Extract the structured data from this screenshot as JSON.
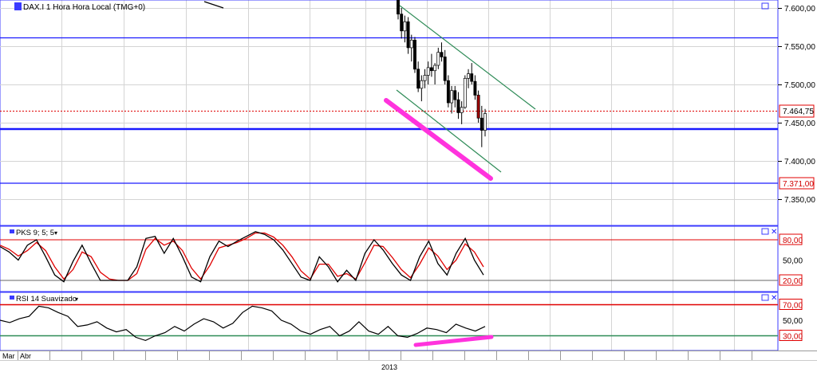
{
  "main_panel": {
    "title": "DAX.I 1 Hora Hora Local (TMG+0)",
    "y_axis": {
      "min": 7300,
      "max": 7620,
      "ticks": [
        "7.600,00",
        "7.550,00",
        "7.500,00",
        "7.450,00",
        "7.400,00",
        "7.350,00"
      ]
    },
    "price_label": "7.464,75",
    "level_label": "7.371,00",
    "colors": {
      "hline": "#1a1aff",
      "price_line": "#e00000",
      "channel": "#2e8b57",
      "annotation": "#ff33dd",
      "up": "#ffffff",
      "down": "#000000"
    }
  },
  "pks_panel": {
    "title": "PKS 9; 5; 5",
    "ticks": [
      "80,00",
      "50,00",
      "20,00"
    ]
  },
  "rsi_panel": {
    "title": "RSI 14 Suavizado",
    "ticks": [
      "70,00",
      "50,00",
      "30,00"
    ]
  },
  "x_axis": {
    "month_labels": [
      "Mar",
      "Abr"
    ],
    "year_label": "2013"
  },
  "chart_data": [
    {
      "type": "candlestick",
      "title": "DAX.I 1 Hora Hora Local (TMG+0)",
      "ylim": [
        7300,
        7620
      ],
      "y_ticks": [
        7600,
        7550,
        7500,
        7450,
        7400,
        7350
      ],
      "horizontal_levels": [
        7560,
        7442,
        7371
      ],
      "current_price": 7464.75,
      "channel_upper": [
        [
          7603,
          7472
        ]
      ],
      "channel_lower": [
        [
          7490,
          7388
        ]
      ],
      "candles": [
        {
          "o": 7610,
          "h": 7625,
          "l": 7585,
          "c": 7592
        },
        {
          "o": 7592,
          "h": 7600,
          "l": 7560,
          "c": 7570
        },
        {
          "o": 7570,
          "h": 7590,
          "l": 7555,
          "c": 7582
        },
        {
          "o": 7582,
          "h": 7588,
          "l": 7540,
          "c": 7548
        },
        {
          "o": 7548,
          "h": 7565,
          "l": 7530,
          "c": 7558
        },
        {
          "o": 7558,
          "h": 7562,
          "l": 7515,
          "c": 7520
        },
        {
          "o": 7520,
          "h": 7530,
          "l": 7490,
          "c": 7495
        },
        {
          "o": 7495,
          "h": 7512,
          "l": 7478,
          "c": 7505
        },
        {
          "o": 7505,
          "h": 7520,
          "l": 7495,
          "c": 7512
        },
        {
          "o": 7512,
          "h": 7530,
          "l": 7500,
          "c": 7522
        },
        {
          "o": 7522,
          "h": 7540,
          "l": 7510,
          "c": 7518
        },
        {
          "o": 7518,
          "h": 7528,
          "l": 7500,
          "c": 7525
        },
        {
          "o": 7525,
          "h": 7548,
          "l": 7520,
          "c": 7542
        },
        {
          "o": 7542,
          "h": 7555,
          "l": 7530,
          "c": 7536
        },
        {
          "o": 7536,
          "h": 7545,
          "l": 7500,
          "c": 7505
        },
        {
          "o": 7505,
          "h": 7512,
          "l": 7470,
          "c": 7476
        },
        {
          "o": 7476,
          "h": 7498,
          "l": 7462,
          "c": 7492
        },
        {
          "o": 7492,
          "h": 7498,
          "l": 7470,
          "c": 7480
        },
        {
          "o": 7480,
          "h": 7490,
          "l": 7455,
          "c": 7463
        },
        {
          "o": 7463,
          "h": 7478,
          "l": 7448,
          "c": 7470
        },
        {
          "o": 7470,
          "h": 7512,
          "l": 7468,
          "c": 7508
        },
        {
          "o": 7508,
          "h": 7520,
          "l": 7495,
          "c": 7514
        },
        {
          "o": 7514,
          "h": 7528,
          "l": 7500,
          "c": 7504
        },
        {
          "o": 7504,
          "h": 7512,
          "l": 7480,
          "c": 7486
        },
        {
          "o": 7486,
          "h": 7492,
          "l": 7450,
          "c": 7456
        },
        {
          "o": 7456,
          "h": 7472,
          "l": 7418,
          "c": 7440
        },
        {
          "o": 7440,
          "h": 7468,
          "l": 7432,
          "c": 7462
        }
      ]
    },
    {
      "type": "line",
      "title": "PKS 9; 5; 5",
      "ylim": [
        0,
        100
      ],
      "y_ticks": [
        80,
        50,
        20
      ],
      "reference_lines": [
        80,
        20
      ],
      "series": [
        {
          "color": "#000000",
          "values": [
            70,
            62,
            50,
            72,
            80,
            55,
            28,
            18,
            48,
            72,
            45,
            20,
            20,
            20,
            20,
            40,
            82,
            85,
            60,
            82,
            55,
            25,
            18,
            55,
            78,
            70,
            78,
            85,
            92,
            88,
            80,
            65,
            45,
            25,
            20,
            55,
            40,
            18,
            35,
            20,
            60,
            80,
            65,
            45,
            28,
            20,
            55,
            78,
            45,
            28,
            60,
            82,
            50,
            28
          ]
        },
        {
          "color": "#e00000",
          "values": [
            72,
            66,
            56,
            64,
            76,
            64,
            40,
            22,
            36,
            62,
            55,
            32,
            22,
            20,
            20,
            30,
            66,
            82,
            72,
            78,
            64,
            38,
            22,
            42,
            68,
            72,
            76,
            82,
            90,
            90,
            84,
            72,
            55,
            34,
            22,
            44,
            44,
            26,
            30,
            22,
            46,
            72,
            70,
            54,
            36,
            24,
            44,
            68,
            56,
            36,
            50,
            74,
            62,
            40
          ]
        }
      ]
    },
    {
      "type": "line",
      "title": "RSI 14 Suavizado",
      "ylim": [
        15,
        85
      ],
      "y_ticks": [
        70,
        50,
        30
      ],
      "reference_lines": [
        70,
        30
      ],
      "series": [
        {
          "color": "#000000",
          "values": [
            50,
            47,
            52,
            55,
            68,
            66,
            60,
            55,
            42,
            44,
            48,
            40,
            35,
            38,
            28,
            24,
            30,
            34,
            42,
            36,
            45,
            52,
            48,
            40,
            46,
            60,
            68,
            66,
            62,
            50,
            45,
            36,
            32,
            38,
            42,
            30,
            36,
            48,
            36,
            32,
            42,
            30,
            28,
            33,
            40,
            38,
            34,
            45,
            40,
            36,
            42
          ]
        }
      ]
    }
  ]
}
